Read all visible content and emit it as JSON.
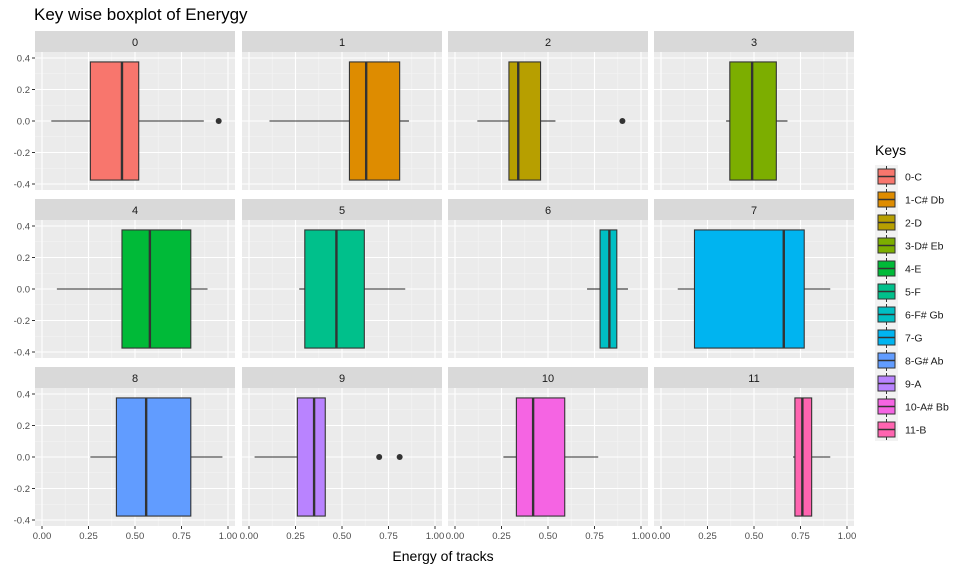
{
  "chart_data": {
    "type": "boxplot",
    "title": "Key wise boxplot of Enerygy",
    "xlabel": "Energy of tracks",
    "ylabel": "",
    "xlim": [
      0,
      1
    ],
    "ylim": [
      -0.4,
      0.4
    ],
    "x_ticks": [
      "0.00",
      "0.25",
      "0.50",
      "0.75",
      "1.00"
    ],
    "y_ticks": [
      "0.4",
      "0.2",
      "0.0",
      "-0.2",
      "-0.4"
    ],
    "grid": true,
    "legend": {
      "title": "Keys",
      "position": "right"
    },
    "facets": [
      {
        "strip": "0",
        "key": "0-C",
        "color": "#F8766D",
        "whisker_low": 0.05,
        "q1": 0.26,
        "median": 0.43,
        "q3": 0.52,
        "whisker_high": 0.87,
        "outliers": [
          0.95
        ]
      },
      {
        "strip": "1",
        "key": "1-C# Db",
        "color": "#DE8C00",
        "whisker_low": 0.11,
        "q1": 0.54,
        "median": 0.63,
        "q3": 0.81,
        "whisker_high": 0.86,
        "outliers": []
      },
      {
        "strip": "2",
        "key": "2-D",
        "color": "#B79F00",
        "whisker_low": 0.12,
        "q1": 0.29,
        "median": 0.34,
        "q3": 0.46,
        "whisker_high": 0.54,
        "outliers": [
          0.9
        ]
      },
      {
        "strip": "3",
        "key": "3-D# Eb",
        "color": "#7CAE00",
        "whisker_low": 0.35,
        "q1": 0.37,
        "median": 0.49,
        "q3": 0.62,
        "whisker_high": 0.68,
        "outliers": []
      },
      {
        "strip": "4",
        "key": "4-E",
        "color": "#00BA38",
        "whisker_low": 0.08,
        "q1": 0.43,
        "median": 0.58,
        "q3": 0.8,
        "whisker_high": 0.89,
        "outliers": []
      },
      {
        "strip": "5",
        "key": "5-F",
        "color": "#00C08B",
        "whisker_low": 0.27,
        "q1": 0.3,
        "median": 0.47,
        "q3": 0.62,
        "whisker_high": 0.84,
        "outliers": []
      },
      {
        "strip": "6",
        "key": "6-F# Gb",
        "color": "#00BFC4",
        "whisker_low": 0.71,
        "q1": 0.78,
        "median": 0.83,
        "q3": 0.87,
        "whisker_high": 0.93,
        "outliers": []
      },
      {
        "strip": "7",
        "key": "7-G",
        "color": "#00B4F0",
        "whisker_low": 0.09,
        "q1": 0.18,
        "median": 0.66,
        "q3": 0.77,
        "whisker_high": 0.91,
        "outliers": []
      },
      {
        "strip": "8",
        "key": "8-G# Ab",
        "color": "#619CFF",
        "whisker_low": 0.26,
        "q1": 0.4,
        "median": 0.56,
        "q3": 0.8,
        "whisker_high": 0.97,
        "outliers": []
      },
      {
        "strip": "9",
        "key": "9-A",
        "color": "#B983FF",
        "whisker_low": 0.03,
        "q1": 0.26,
        "median": 0.35,
        "q3": 0.41,
        "whisker_high": 0.41,
        "outliers": [
          0.7,
          0.81
        ]
      },
      {
        "strip": "10",
        "key": "10-A# Bb",
        "color": "#F564E3",
        "whisker_low": 0.26,
        "q1": 0.33,
        "median": 0.42,
        "q3": 0.59,
        "whisker_high": 0.77,
        "outliers": []
      },
      {
        "strip": "11",
        "key": "11-B",
        "color": "#FF64B0",
        "whisker_low": 0.71,
        "q1": 0.72,
        "median": 0.76,
        "q3": 0.81,
        "whisker_high": 0.91,
        "outliers": []
      }
    ]
  }
}
